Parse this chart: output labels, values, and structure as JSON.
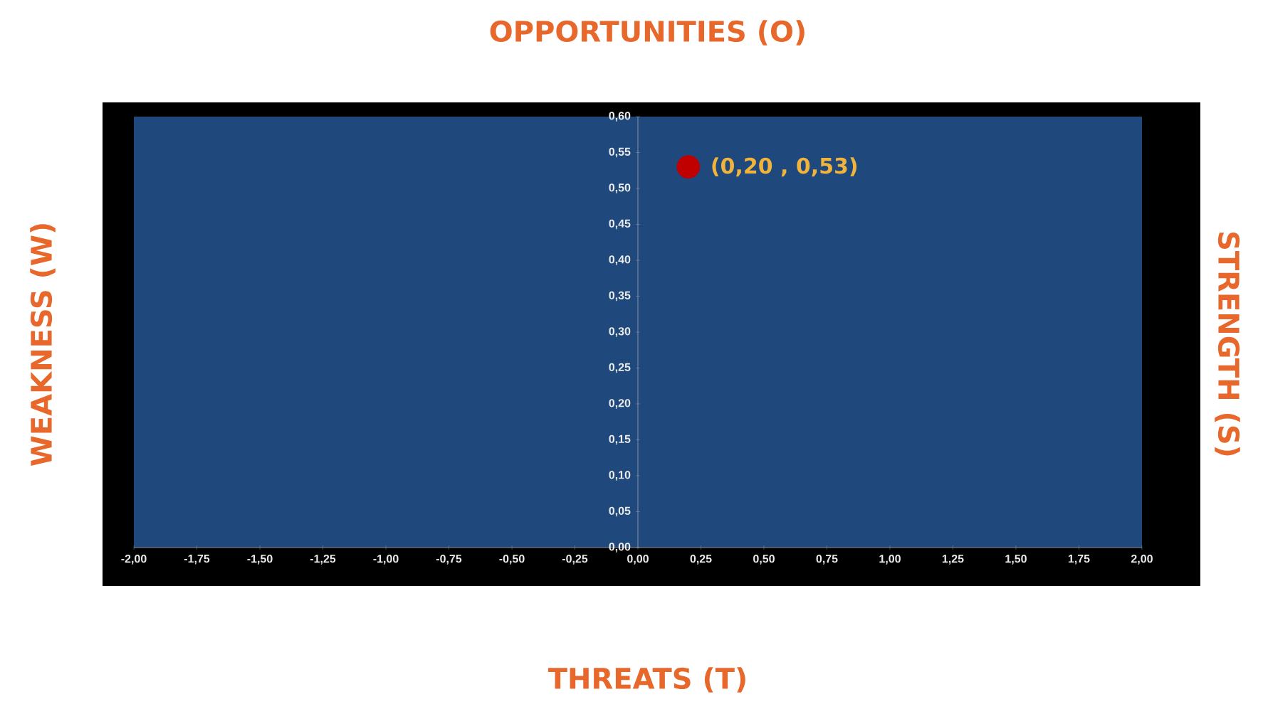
{
  "chart_data": {
    "type": "scatter",
    "x": [
      0.2
    ],
    "values": [
      0.53
    ],
    "color": "#c00000",
    "xlim": [
      -2,
      2
    ],
    "ylim": [
      0,
      0.6
    ],
    "xticks": [
      {
        "value": -2,
        "label": "-2,00"
      },
      {
        "value": -1.75,
        "label": "-1,75"
      },
      {
        "value": -1.5,
        "label": "-1,50"
      },
      {
        "value": -1.25,
        "label": "-1,25"
      },
      {
        "value": -1,
        "label": "-1,00"
      },
      {
        "value": -0.75,
        "label": "-0,75"
      },
      {
        "value": -0.5,
        "label": "-0,50"
      },
      {
        "value": -0.25,
        "label": "-0,25"
      },
      {
        "value": 0,
        "label": "0,00"
      },
      {
        "value": 0.25,
        "label": "0,25"
      },
      {
        "value": 0.5,
        "label": "0,50"
      },
      {
        "value": 0.75,
        "label": "0,75"
      },
      {
        "value": 1,
        "label": "1,00"
      },
      {
        "value": 1.25,
        "label": "1,25"
      },
      {
        "value": 1.5,
        "label": "1,50"
      },
      {
        "value": 1.75,
        "label": "1,75"
      },
      {
        "value": 2,
        "label": "2,00"
      }
    ],
    "yticks": [
      {
        "value": 0,
        "label": "0,00"
      },
      {
        "value": 0.05,
        "label": "0,05"
      },
      {
        "value": 0.1,
        "label": "0,10"
      },
      {
        "value": 0.15,
        "label": "0,15"
      },
      {
        "value": 0.2,
        "label": "0,20"
      },
      {
        "value": 0.25,
        "label": "0,25"
      },
      {
        "value": 0.3,
        "label": "0,30"
      },
      {
        "value": 0.35,
        "label": "0,35"
      },
      {
        "value": 0.4,
        "label": "0,40"
      },
      {
        "value": 0.45,
        "label": "0,45"
      },
      {
        "value": 0.5,
        "label": "0,50"
      },
      {
        "value": 0.55,
        "label": "0,55"
      },
      {
        "value": 0.6,
        "label": "0,60"
      }
    ],
    "annotations": [
      "OPPORTUNITIES (O)",
      "THREATS (T)",
      "WEAKNESS (W)",
      "STRENGTH (S)",
      {
        "text": "(0,20 , 0,53)",
        "x": 0.2,
        "y": 0.53
      }
    ]
  }
}
